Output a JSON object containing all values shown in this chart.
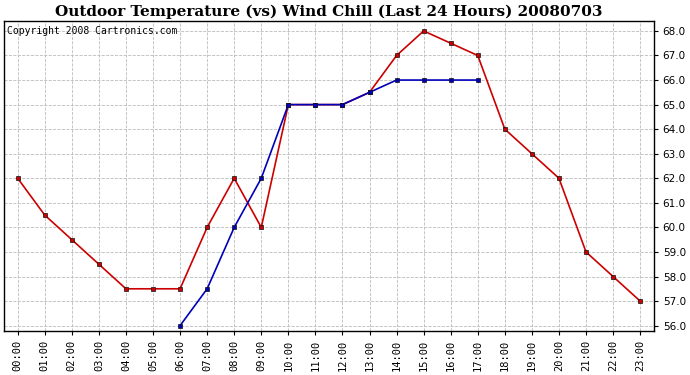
{
  "title": "Outdoor Temperature (vs) Wind Chill (Last 24 Hours) 20080703",
  "copyright": "Copyright 2008 Cartronics.com",
  "hours": [
    "00:00",
    "01:00",
    "02:00",
    "03:00",
    "04:00",
    "05:00",
    "06:00",
    "07:00",
    "08:00",
    "09:00",
    "10:00",
    "11:00",
    "12:00",
    "13:00",
    "14:00",
    "15:00",
    "16:00",
    "17:00",
    "18:00",
    "19:00",
    "20:00",
    "21:00",
    "22:00",
    "23:00"
  ],
  "temp": [
    62.0,
    60.5,
    59.5,
    58.5,
    57.5,
    57.5,
    57.5,
    60.0,
    62.0,
    60.0,
    65.0,
    65.0,
    65.0,
    65.5,
    67.0,
    68.0,
    67.5,
    67.0,
    64.0,
    63.0,
    62.0,
    59.0,
    58.0,
    57.0
  ],
  "wind_chill": [
    null,
    null,
    null,
    null,
    null,
    null,
    56.0,
    57.5,
    60.0,
    62.0,
    65.0,
    65.0,
    65.0,
    65.5,
    66.0,
    66.0,
    66.0,
    66.0,
    null,
    null,
    null,
    null,
    null,
    null
  ],
  "temp_color": "#cc0000",
  "wind_chill_color": "#0000bb",
  "bg_color": "#ffffff",
  "plot_bg_color": "#ffffff",
  "grid_color": "#bbbbbb",
  "ylim": [
    55.8,
    68.4
  ],
  "yticks": [
    56.0,
    57.0,
    58.0,
    59.0,
    60.0,
    61.0,
    62.0,
    63.0,
    64.0,
    65.0,
    66.0,
    67.0,
    68.0
  ],
  "marker": "s",
  "marker_size": 3,
  "line_width": 1.2,
  "title_fontsize": 11,
  "tick_fontsize": 7.5,
  "copyright_fontsize": 7
}
